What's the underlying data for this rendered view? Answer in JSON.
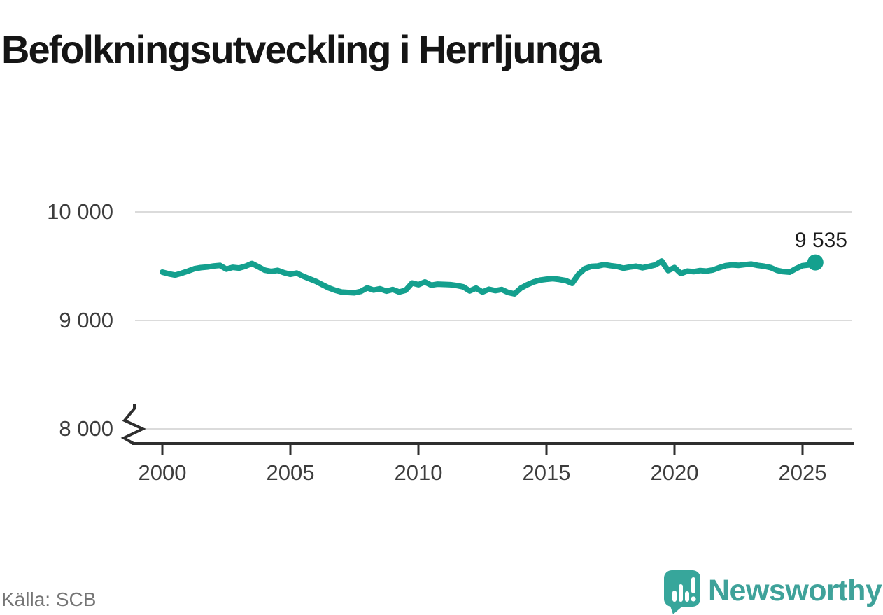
{
  "header": {
    "title": "Befolkningsutveckling i Herrljunga"
  },
  "chart_data": {
    "type": "line",
    "title": "Befolkningsutveckling i Herrljunga",
    "grid": "horizontal",
    "axis_break_below": 8000,
    "x_start": 2000,
    "x_step": 0.25,
    "x_ticks": [
      2000,
      2005,
      2010,
      2015,
      2020,
      2025
    ],
    "x_tick_labels": [
      "2000",
      "2005",
      "2010",
      "2015",
      "2020",
      "2025"
    ],
    "y_ticks": [
      10000,
      9000,
      8000
    ],
    "y_tick_labels": [
      "10 000",
      "9 000",
      "8 000"
    ],
    "ylim_display": [
      8000,
      10000
    ],
    "line_color": "#14a08e",
    "series": [
      {
        "name": "Befolkning",
        "values": [
          9445,
          9430,
          9418,
          9435,
          9455,
          9477,
          9487,
          9492,
          9502,
          9508,
          9473,
          9490,
          9483,
          9500,
          9525,
          9495,
          9463,
          9452,
          9462,
          9440,
          9425,
          9437,
          9408,
          9383,
          9360,
          9330,
          9300,
          9278,
          9262,
          9258,
          9255,
          9268,
          9300,
          9280,
          9292,
          9270,
          9285,
          9262,
          9278,
          9345,
          9330,
          9355,
          9325,
          9335,
          9332,
          9330,
          9322,
          9310,
          9272,
          9298,
          9262,
          9288,
          9275,
          9285,
          9258,
          9245,
          9298,
          9330,
          9355,
          9372,
          9380,
          9385,
          9378,
          9368,
          9342,
          9425,
          9478,
          9498,
          9502,
          9515,
          9505,
          9498,
          9482,
          9492,
          9500,
          9486,
          9498,
          9512,
          9548,
          9460,
          9488,
          9432,
          9455,
          9450,
          9460,
          9455,
          9465,
          9487,
          9505,
          9512,
          9508,
          9515,
          9520,
          9508,
          9500,
          9488,
          9462,
          9450,
          9445,
          9478,
          9505,
          9512,
          9535
        ]
      }
    ],
    "end_point": {
      "x": 2025.5,
      "value": 9535,
      "label": "9 535"
    }
  },
  "footer": {
    "source": "Källa: SCB",
    "brand": "Newsworthy"
  },
  "colors": {
    "line": "#14a08e",
    "gridline": "#dbdbdb",
    "axis": "#2e2e2e",
    "tick_text": "#3d3d3d",
    "title_text": "#151515",
    "source_text": "#757575",
    "logo_bubble": "#37a69b",
    "logo_text": "#3fa29a"
  }
}
